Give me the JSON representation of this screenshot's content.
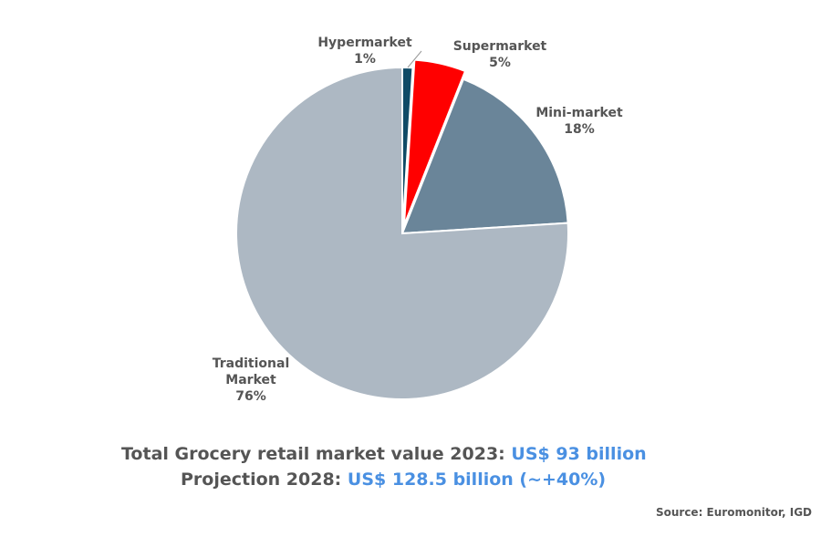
{
  "chart_data": {
    "type": "pie",
    "slices": [
      {
        "label": "Hypermarket",
        "value": 1,
        "display": "1%",
        "color": "#0f4a66",
        "exploded": false
      },
      {
        "label": "Supermarket",
        "value": 5,
        "display": "5%",
        "color": "#ff0000",
        "exploded": true
      },
      {
        "label": "Mini-market",
        "value": 18,
        "display": "18%",
        "color": "#6a8599",
        "exploded": false
      },
      {
        "label": "Traditional Market",
        "value": 76,
        "display": "76%",
        "color": "#adb8c3",
        "exploded": false
      }
    ],
    "start_angle_deg": 0,
    "direction": "clockwise"
  },
  "footer": {
    "line1_label": "Total Grocery retail market value 2023:",
    "line1_value": "US$ 93 billion",
    "line2_label": "Projection 2028:",
    "line2_value": "US$ 128.5 billion (~+40%)",
    "source": "Source: Euromonitor, IGD"
  },
  "colors": {
    "text": "#555555",
    "highlight": "#4a90e2"
  }
}
